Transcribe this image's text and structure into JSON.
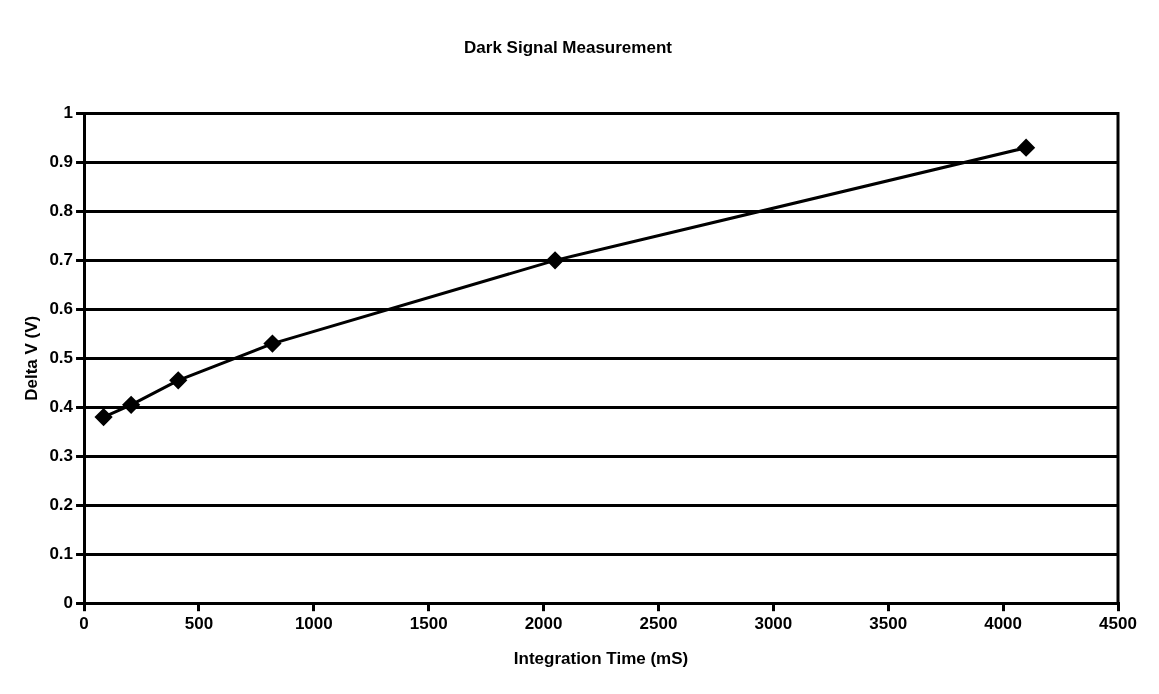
{
  "chart_data": {
    "type": "line",
    "title": "Dark Signal Measurement",
    "xlabel": "Integration Time (mS)",
    "ylabel": "Delta V (V)",
    "x": [
      85,
      205,
      410,
      820,
      2050,
      4100
    ],
    "series": [
      {
        "color": "#000000",
        "values": [
          0.38,
          0.405,
          0.455,
          0.53,
          0.7,
          0.93
        ]
      }
    ],
    "xlim": [
      0,
      4500
    ],
    "xticks": [
      0,
      500,
      1000,
      1500,
      2000,
      2500,
      3000,
      3500,
      4000,
      4500
    ],
    "ylim": [
      0,
      1
    ],
    "yticks": [
      0,
      0.1,
      0.2,
      0.3,
      0.4,
      0.5,
      0.6,
      0.7,
      0.8,
      0.9,
      1
    ],
    "grid": "y",
    "legend": false,
    "marker": "diamond",
    "line_style": "solid"
  }
}
